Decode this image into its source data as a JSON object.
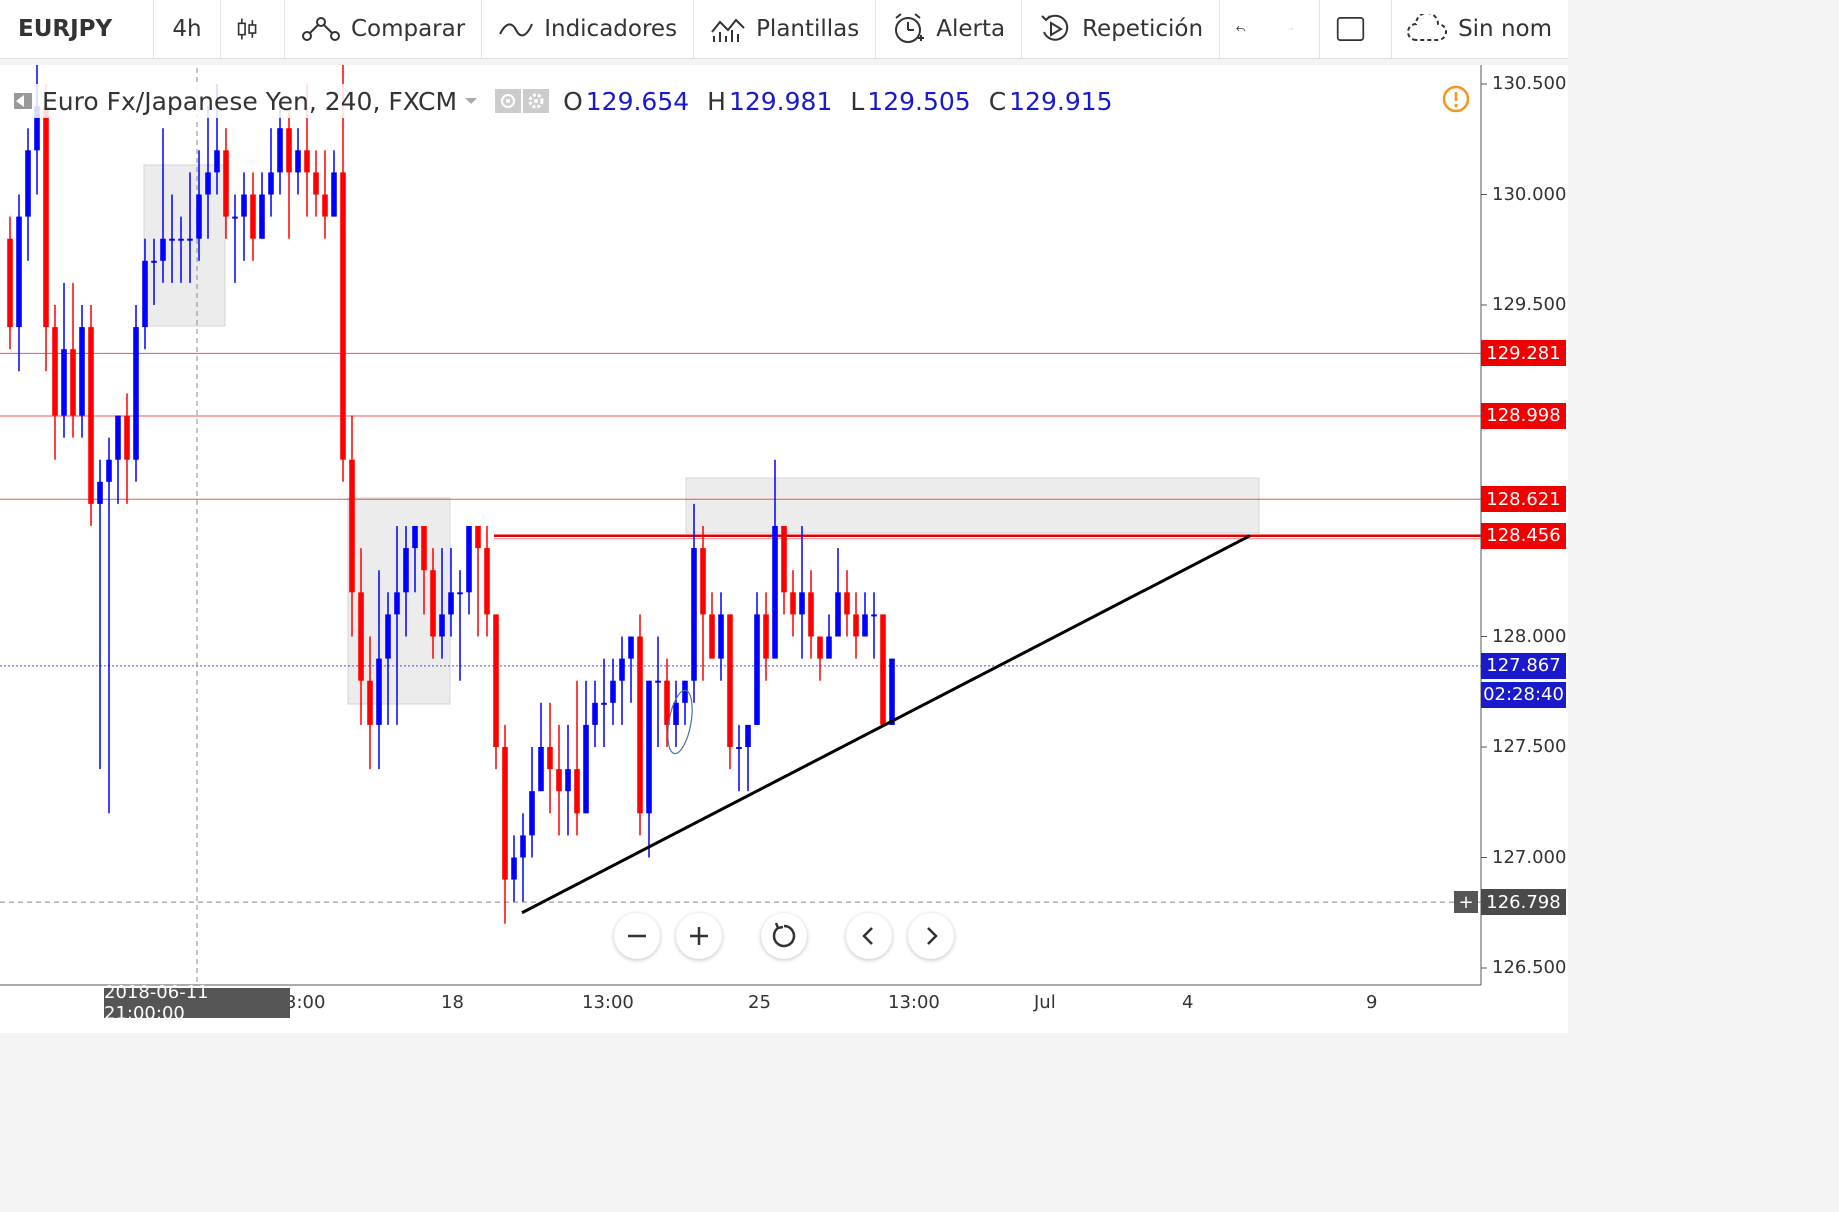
{
  "toolbar": {
    "symbol": "EURJPY",
    "interval": "4h",
    "compare": "Comparar",
    "indicators": "Indicadores",
    "templates": "Plantillas",
    "alert": "Alerta",
    "replay": "Repetición",
    "layout_name": "Sin nom"
  },
  "legend": {
    "title": "Euro Fx/Japanese Yen, 240, FXCM",
    "o_label": "O",
    "o": "129.654",
    "h_label": "H",
    "h": "129.981",
    "l_label": "L",
    "l": "129.505",
    "c_label": "C",
    "c": "129.915"
  },
  "price_axis": {
    "ticks": [
      "130.500",
      "130.000",
      "129.500",
      "128.000",
      "127.500",
      "127.000",
      "126.500"
    ],
    "tags": [
      {
        "label": "129.281",
        "color": "#f00000"
      },
      {
        "label": "128.998",
        "color": "#f00000"
      },
      {
        "label": "128.621",
        "color": "#f00000"
      },
      {
        "label": "128.456",
        "color": "#f00000"
      },
      {
        "label": "127.867",
        "color": "#1a1acd"
      },
      {
        "label": "02:28:40",
        "color": "#1a1acd"
      },
      {
        "label": "126.798",
        "color": "#4a4a4a"
      }
    ]
  },
  "time_axis": {
    "labels": [
      "3:00",
      "18",
      "13:00",
      "25",
      "13:00",
      "Jul",
      "4",
      "9"
    ],
    "crosshair_date": "2018-06-11 21:00:00"
  },
  "icons": {
    "warning": "warning-icon",
    "zoom_out": "minus-icon",
    "zoom_in": "plus-icon",
    "reset": "reset-icon",
    "back": "chevron-left-icon",
    "forward": "chevron-right-icon"
  },
  "chart_data": {
    "type": "candlestick",
    "ylim": [
      126.5,
      130.6
    ],
    "up_color": "#0000ff",
    "down_color": "#ff0000",
    "candles": [
      [
        129.8,
        129.4,
        129.9,
        129.3
      ],
      [
        129.4,
        129.9,
        130.0,
        129.2
      ],
      [
        129.9,
        130.2,
        130.3,
        129.7
      ],
      [
        130.2,
        130.4,
        130.6,
        130.0
      ],
      [
        130.4,
        129.4,
        130.5,
        129.2
      ],
      [
        129.4,
        129.0,
        129.5,
        128.8
      ],
      [
        129.0,
        129.3,
        129.6,
        128.9
      ],
      [
        129.3,
        129.0,
        129.6,
        128.9
      ],
      [
        129.0,
        129.4,
        129.5,
        128.9
      ],
      [
        129.4,
        128.6,
        129.5,
        128.5
      ],
      [
        128.6,
        128.7,
        128.8,
        127.4
      ],
      [
        128.7,
        128.8,
        128.9,
        127.2
      ],
      [
        128.8,
        129.0,
        129.0,
        128.6
      ],
      [
        129.0,
        128.8,
        129.1,
        128.6
      ],
      [
        128.8,
        129.4,
        129.5,
        128.7
      ],
      [
        129.4,
        129.7,
        129.8,
        129.3
      ],
      [
        129.7,
        129.7,
        129.8,
        129.5
      ],
      [
        129.7,
        129.8,
        130.3,
        129.6
      ],
      [
        129.8,
        129.8,
        130.0,
        129.6
      ],
      [
        129.8,
        129.8,
        129.9,
        129.6
      ],
      [
        129.8,
        129.8,
        130.1,
        129.6
      ],
      [
        129.8,
        130.0,
        130.2,
        129.7
      ],
      [
        130.0,
        130.1,
        130.4,
        129.8
      ],
      [
        130.1,
        130.2,
        130.5,
        130.0
      ],
      [
        130.2,
        129.9,
        130.3,
        129.8
      ],
      [
        129.9,
        129.9,
        130.0,
        129.6
      ],
      [
        129.9,
        130.0,
        130.1,
        129.7
      ],
      [
        130.0,
        129.8,
        130.1,
        129.7
      ],
      [
        129.8,
        130.0,
        130.1,
        129.8
      ],
      [
        130.0,
        130.1,
        130.3,
        129.9
      ],
      [
        130.1,
        130.3,
        130.4,
        130.0
      ],
      [
        130.3,
        130.1,
        130.4,
        129.8
      ],
      [
        130.1,
        130.2,
        130.3,
        130.0
      ],
      [
        130.2,
        130.1,
        130.5,
        129.9
      ],
      [
        130.1,
        130.0,
        130.2,
        129.9
      ],
      [
        130.0,
        129.9,
        130.2,
        129.8
      ],
      [
        129.9,
        130.1,
        130.2,
        129.9
      ],
      [
        130.1,
        128.8,
        130.6,
        128.7
      ],
      [
        128.8,
        128.2,
        129.0,
        128.0
      ],
      [
        128.2,
        127.8,
        128.4,
        127.6
      ],
      [
        127.8,
        127.6,
        128.0,
        127.4
      ],
      [
        127.6,
        127.9,
        128.3,
        127.4
      ],
      [
        127.9,
        128.1,
        128.2,
        127.6
      ],
      [
        128.1,
        128.2,
        128.5,
        127.6
      ],
      [
        128.2,
        128.4,
        128.5,
        128.0
      ],
      [
        128.4,
        128.5,
        128.5,
        128.2
      ],
      [
        128.5,
        128.3,
        128.5,
        128.1
      ],
      [
        128.3,
        128.0,
        128.4,
        127.9
      ],
      [
        128.0,
        128.1,
        128.4,
        127.9
      ],
      [
        128.1,
        128.2,
        128.4,
        128.0
      ],
      [
        128.2,
        128.2,
        128.3,
        127.8
      ],
      [
        128.2,
        128.5,
        128.5,
        128.1
      ],
      [
        128.5,
        128.4,
        128.5,
        128.0
      ],
      [
        128.4,
        128.1,
        128.5,
        128.0
      ],
      [
        128.1,
        127.5,
        128.1,
        127.4
      ],
      [
        127.5,
        126.9,
        127.6,
        126.7
      ],
      [
        126.9,
        127.0,
        127.1,
        126.8
      ],
      [
        127.0,
        127.1,
        127.2,
        126.8
      ],
      [
        127.1,
        127.3,
        127.5,
        127.0
      ],
      [
        127.3,
        127.5,
        127.7,
        127.3
      ],
      [
        127.5,
        127.4,
        127.7,
        127.2
      ],
      [
        127.4,
        127.3,
        127.6,
        127.1
      ],
      [
        127.3,
        127.4,
        127.6,
        127.1
      ],
      [
        127.4,
        127.2,
        127.8,
        127.1
      ],
      [
        127.2,
        127.6,
        127.8,
        127.2
      ],
      [
        127.6,
        127.7,
        127.8,
        127.5
      ],
      [
        127.7,
        127.7,
        127.9,
        127.5
      ],
      [
        127.7,
        127.8,
        127.9,
        127.6
      ],
      [
        127.8,
        127.9,
        128.0,
        127.6
      ],
      [
        127.9,
        128.0,
        128.0,
        127.7
      ],
      [
        128.0,
        127.2,
        128.1,
        127.1
      ],
      [
        127.2,
        127.8,
        127.8,
        127.0
      ],
      [
        127.8,
        127.8,
        128.0,
        127.5
      ],
      [
        127.8,
        127.6,
        127.9,
        127.5
      ],
      [
        127.6,
        127.7,
        127.8,
        127.5
      ],
      [
        127.7,
        127.8,
        127.8,
        127.6
      ],
      [
        127.8,
        128.4,
        128.6,
        127.7
      ],
      [
        128.4,
        128.1,
        128.5,
        127.8
      ],
      [
        128.1,
        127.9,
        128.2,
        127.9
      ],
      [
        127.9,
        128.1,
        128.2,
        127.8
      ],
      [
        128.1,
        127.5,
        128.1,
        127.4
      ],
      [
        127.5,
        127.5,
        127.6,
        127.3
      ],
      [
        127.5,
        127.6,
        127.6,
        127.3
      ],
      [
        127.6,
        128.1,
        128.2,
        127.6
      ],
      [
        128.1,
        127.9,
        128.2,
        127.8
      ],
      [
        127.9,
        128.5,
        128.8,
        127.9
      ],
      [
        128.5,
        128.2,
        128.5,
        128.1
      ],
      [
        128.2,
        128.1,
        128.3,
        128.0
      ],
      [
        128.1,
        128.2,
        128.5,
        127.9
      ],
      [
        128.2,
        128.0,
        128.3,
        127.9
      ],
      [
        128.0,
        127.9,
        128.0,
        127.8
      ],
      [
        127.9,
        128.0,
        128.1,
        127.9
      ],
      [
        128.0,
        128.2,
        128.4,
        128.0
      ],
      [
        128.2,
        128.1,
        128.3,
        128.0
      ],
      [
        128.1,
        128.0,
        128.2,
        127.9
      ],
      [
        128.0,
        128.1,
        128.2,
        128.0
      ],
      [
        128.1,
        128.1,
        128.2,
        127.9
      ],
      [
        128.1,
        127.6,
        128.1,
        127.6
      ],
      [
        127.6,
        127.9,
        127.9,
        127.6
      ]
    ],
    "horizontal_levels": [
      129.281,
      128.998,
      128.621,
      128.456,
      127.867,
      126.798
    ],
    "trend_line": {
      "from_price": 126.75,
      "to_price": 128.456
    }
  }
}
